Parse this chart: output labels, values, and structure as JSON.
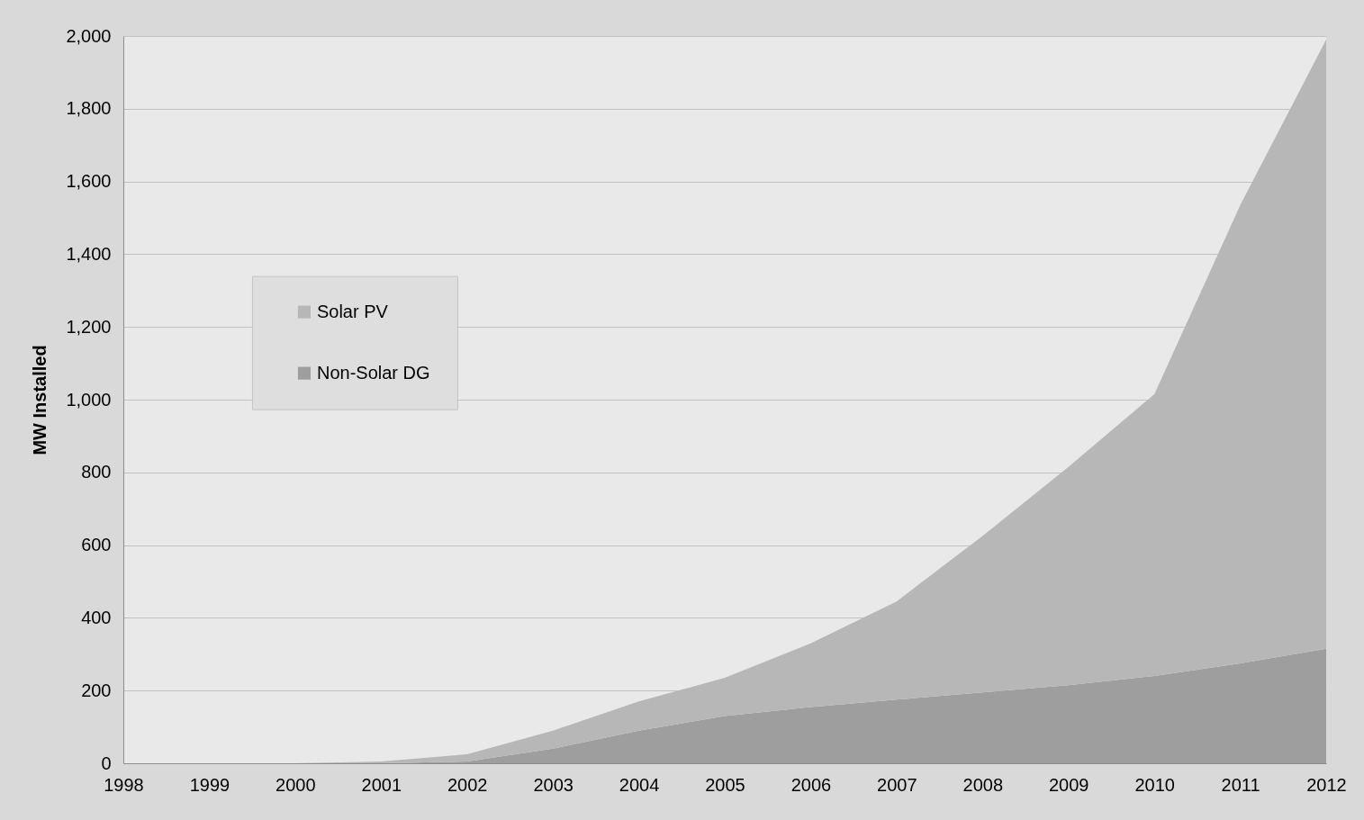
{
  "chart_data": {
    "type": "area",
    "stacked": true,
    "ylabel": "MW Installed",
    "categories": [
      "1998",
      "1999",
      "2000",
      "2001",
      "2002",
      "2003",
      "2004",
      "2005",
      "2006",
      "2007",
      "2008",
      "2009",
      "2010",
      "2011",
      "2012"
    ],
    "series": [
      {
        "name": "Non-Solar DG",
        "color": "#9e9e9e",
        "values": [
          0,
          0,
          0,
          0,
          5,
          40,
          90,
          130,
          155,
          175,
          195,
          215,
          240,
          275,
          315
        ]
      },
      {
        "name": "Solar PV",
        "color": "#b7b7b7",
        "values": [
          0,
          0,
          0,
          5,
          20,
          50,
          80,
          105,
          175,
          270,
          430,
          600,
          775,
          1260,
          1675
        ]
      }
    ],
    "ylim": [
      0,
      2000
    ],
    "yticks": [
      0,
      200,
      400,
      600,
      800,
      {
        "value": 1000,
        "label": "1,000"
      },
      {
        "value": 1200,
        "label": "1,200"
      },
      {
        "value": 1400,
        "label": "1,400"
      },
      {
        "value": 1600,
        "label": "1,600"
      },
      {
        "value": 1800,
        "label": "1,800"
      },
      {
        "value": 2000,
        "label": "2,000"
      }
    ],
    "grid": "y",
    "legend": "left"
  }
}
